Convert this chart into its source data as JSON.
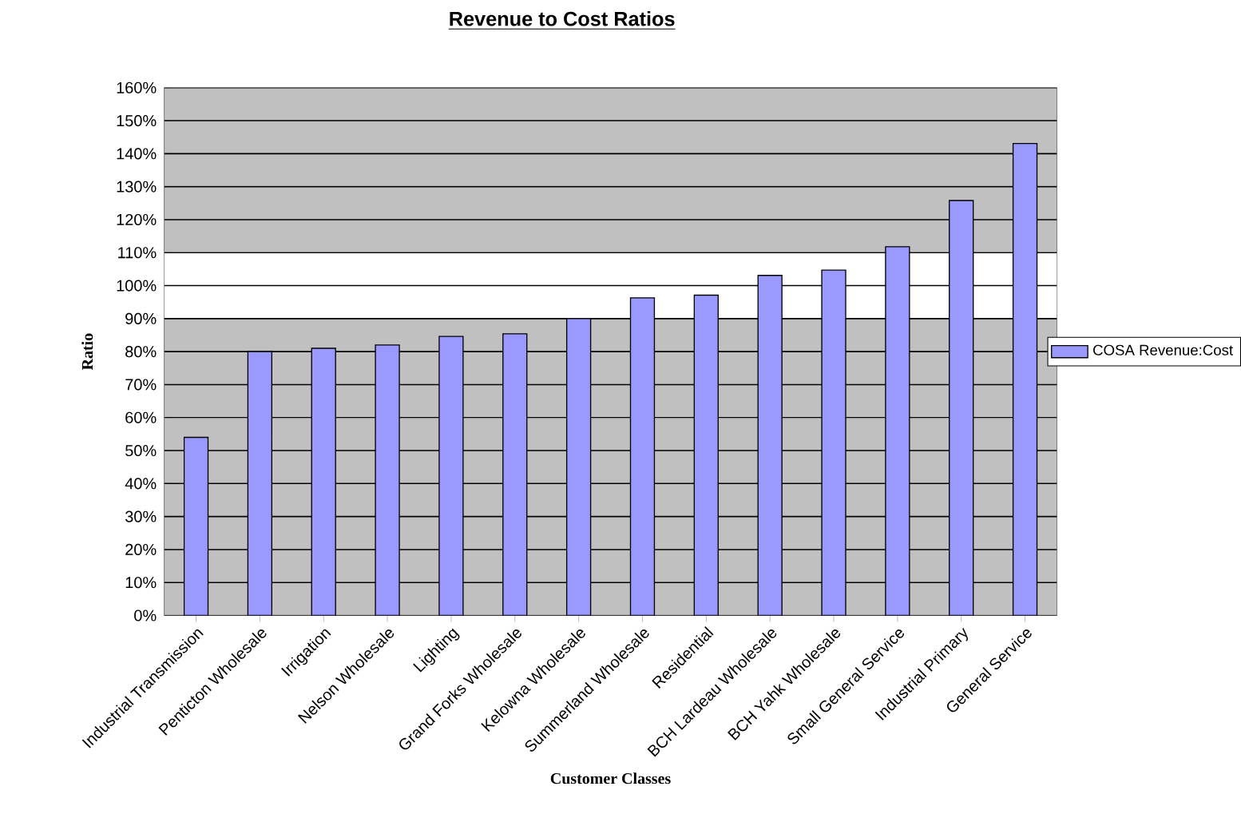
{
  "chart_data": {
    "type": "bar",
    "title": "Revenue to Cost Ratios",
    "xlabel": "Customer Classes",
    "ylabel": "Ratio",
    "categories": [
      "Industrial Transmission",
      "Penticton Wholesale",
      "Irrigation",
      "Nelson Wholesale",
      "Lighting",
      "Grand Forks Wholesale",
      "Kelowna Wholesale",
      "Summerland Wholesale",
      "Residential",
      "BCH Lardeau Wholesale",
      "BCH Yahk Wholesale",
      "Small General Service",
      "Industrial Primary",
      "General Service"
    ],
    "series": [
      {
        "name": "COSA Revenue:Cost",
        "color": "#9999ff",
        "values": [
          54,
          80,
          81,
          82,
          84.6,
          85.4,
          90,
          96.3,
          97.1,
          103.1,
          104.7,
          111.8,
          125.8,
          143.1
        ]
      }
    ],
    "ylim": [
      0,
      160
    ],
    "yticks": [
      {
        "value": 0,
        "label": "0%"
      },
      {
        "value": 10,
        "label": "10%"
      },
      {
        "value": 20,
        "label": "20%"
      },
      {
        "value": 30,
        "label": "30%"
      },
      {
        "value": 40,
        "label": "40%"
      },
      {
        "value": 50,
        "label": "50%"
      },
      {
        "value": 60,
        "label": "60%"
      },
      {
        "value": 70,
        "label": "70%"
      },
      {
        "value": 80,
        "label": "80%"
      },
      {
        "value": 90,
        "label": "90%"
      },
      {
        "value": 100,
        "label": "100%"
      },
      {
        "value": 110,
        "label": "110%"
      },
      {
        "value": 120,
        "label": "120%"
      },
      {
        "value": 130,
        "label": "130%"
      },
      {
        "value": 140,
        "label": "140%"
      },
      {
        "value": 150,
        "label": "150%"
      },
      {
        "value": 160,
        "label": "160%"
      }
    ],
    "bands": [
      {
        "axis": "y",
        "from": 90,
        "to": 110,
        "color": "#ffffff"
      }
    ],
    "grid": "y",
    "legend": "right"
  }
}
